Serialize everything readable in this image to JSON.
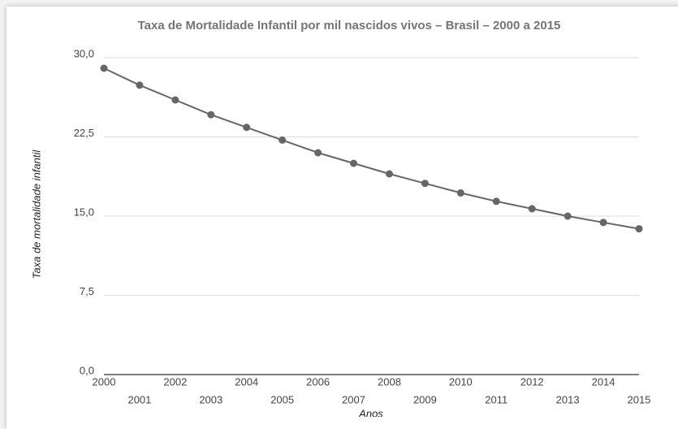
{
  "chart_data": {
    "type": "line",
    "title": "Taxa de Mortalidade Infantil por mil nascidos vivos – Brasil – 2000 a 2015",
    "x_label": "Anos",
    "y_label": "Taxa de mortalidade infantil",
    "x": [
      2000,
      2001,
      2002,
      2003,
      2004,
      2005,
      2006,
      2007,
      2008,
      2009,
      2010,
      2011,
      2012,
      2013,
      2014,
      2015
    ],
    "series": [
      {
        "name": "Taxa de mortalidade infantil",
        "color": "#666666",
        "values": [
          29.0,
          27.4,
          26.0,
          24.6,
          23.4,
          22.2,
          21.0,
          20.0,
          19.0,
          18.1,
          17.2,
          16.4,
          15.7,
          15.0,
          14.4,
          13.8
        ]
      }
    ],
    "xlim": [
      2000,
      2015
    ],
    "xticks": [
      2000,
      2001,
      2002,
      2003,
      2004,
      2005,
      2006,
      2007,
      2008,
      2009,
      2010,
      2011,
      2012,
      2013,
      2014,
      2015
    ],
    "ylim": [
      0,
      30
    ],
    "yticks": [
      {
        "value": 0,
        "label": "0,0"
      },
      {
        "value": 7.5,
        "label": "7,5"
      },
      {
        "value": 15,
        "label": "15,0"
      },
      {
        "value": 22.5,
        "label": "22,5"
      },
      {
        "value": 30,
        "label": "30,0"
      }
    ],
    "grid": true
  }
}
